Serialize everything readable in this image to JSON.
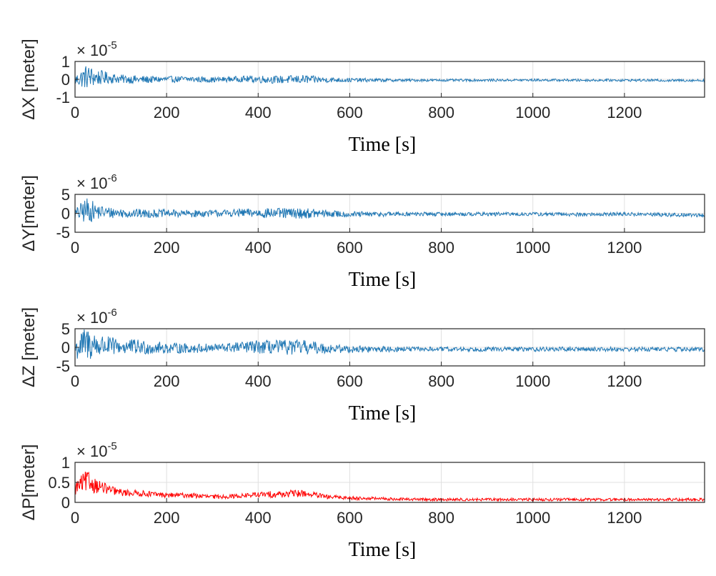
{
  "chart_data": [
    {
      "type": "line",
      "ylabel": "ΔX [meter]",
      "xlabel": "Time [s]",
      "exponent_base": "× 10",
      "exponent": "-5",
      "xlim": [
        0,
        1375
      ],
      "ylim": [
        -1,
        1
      ],
      "xticks": [
        0,
        200,
        400,
        600,
        800,
        1000,
        1200
      ],
      "yticks": [
        -1,
        0,
        1
      ],
      "ytick_labels": [
        "-1",
        "0",
        "1"
      ],
      "grid": true,
      "color": "#1f77b4",
      "series": [
        {
          "x": [
            0,
            25,
            50,
            75,
            100,
            150,
            200,
            250,
            300,
            350,
            400,
            450,
            500,
            550,
            600,
            700,
            800,
            900,
            1000,
            1100,
            1200,
            1300,
            1375
          ],
          "y": [
            -0.05,
            0.15,
            0.1,
            0.08,
            0.02,
            -0.02,
            0.0,
            0.01,
            -0.03,
            0.02,
            0.01,
            -0.02,
            0.0,
            -0.03,
            -0.04,
            -0.05,
            -0.05,
            -0.05,
            -0.04,
            -0.05,
            -0.05,
            -0.06,
            -0.06
          ],
          "amplitude": [
            0.3,
            0.7,
            0.45,
            0.3,
            0.25,
            0.22,
            0.18,
            0.18,
            0.15,
            0.15,
            0.22,
            0.22,
            0.25,
            0.15,
            0.12,
            0.08,
            0.07,
            0.07,
            0.07,
            0.07,
            0.07,
            0.07,
            0.07
          ]
        }
      ]
    },
    {
      "type": "line",
      "ylabel": "ΔY[meter]",
      "xlabel": "Time [s]",
      "exponent_base": "× 10",
      "exponent": "-6",
      "xlim": [
        0,
        1375
      ],
      "ylim": [
        -5,
        5
      ],
      "xticks": [
        0,
        200,
        400,
        600,
        800,
        1000,
        1200
      ],
      "yticks": [
        -5,
        0,
        5
      ],
      "ytick_labels": [
        "-5",
        "0",
        "5"
      ],
      "grid": true,
      "color": "#1f77b4",
      "series": [
        {
          "x": [
            0,
            25,
            50,
            75,
            100,
            150,
            200,
            250,
            300,
            350,
            400,
            450,
            500,
            550,
            600,
            700,
            800,
            900,
            1000,
            1100,
            1200,
            1300,
            1375
          ],
          "y": [
            -0.3,
            0.8,
            0.4,
            0.2,
            0.1,
            -0.1,
            0.0,
            -0.1,
            0.0,
            0.1,
            0.1,
            0.0,
            0.0,
            -0.1,
            -0.3,
            -0.2,
            -0.2,
            -0.2,
            -0.2,
            -0.3,
            -0.2,
            -0.4,
            -0.5
          ],
          "amplitude": [
            1.5,
            3.5,
            2.0,
            1.5,
            1.3,
            1.2,
            1.0,
            1.0,
            0.9,
            1.0,
            1.3,
            1.4,
            1.4,
            1.0,
            0.8,
            0.6,
            0.5,
            0.5,
            0.5,
            0.5,
            0.5,
            0.5,
            0.5
          ]
        }
      ]
    },
    {
      "type": "line",
      "ylabel": "ΔZ [meter]",
      "xlabel": "Time [s]",
      "exponent_base": "× 10",
      "exponent": "-6",
      "xlim": [
        0,
        1375
      ],
      "ylim": [
        -5,
        5
      ],
      "xticks": [
        0,
        200,
        400,
        600,
        800,
        1000,
        1200
      ],
      "yticks": [
        -5,
        0,
        5
      ],
      "ytick_labels": [
        "-5",
        "0",
        "5"
      ],
      "grid": true,
      "color": "#1f77b4",
      "series": [
        {
          "x": [
            0,
            25,
            50,
            75,
            100,
            150,
            200,
            250,
            300,
            350,
            400,
            450,
            500,
            550,
            600,
            700,
            800,
            900,
            1000,
            1100,
            1200,
            1300,
            1375
          ],
          "y": [
            -0.5,
            1.0,
            0.5,
            0.3,
            0.2,
            0.0,
            -0.2,
            -0.3,
            -0.2,
            0.0,
            0.1,
            0.0,
            0.0,
            -0.3,
            -0.5,
            -0.5,
            -0.5,
            -0.5,
            -0.5,
            -0.5,
            -0.5,
            -0.5,
            -0.6
          ],
          "amplitude": [
            3.0,
            4.8,
            3.5,
            2.5,
            2.2,
            2.0,
            1.5,
            1.3,
            1.2,
            1.4,
            1.8,
            2.0,
            2.0,
            1.3,
            1.0,
            0.7,
            0.6,
            0.6,
            0.6,
            0.6,
            0.6,
            0.6,
            0.6
          ]
        }
      ]
    },
    {
      "type": "line",
      "ylabel": "ΔP[meter]",
      "xlabel": "Time [s]",
      "exponent_base": "× 10",
      "exponent": "-5",
      "xlim": [
        0,
        1375
      ],
      "ylim": [
        0,
        1
      ],
      "xticks": [
        0,
        200,
        400,
        600,
        800,
        1000,
        1200
      ],
      "yticks": [
        0,
        0.5,
        1
      ],
      "ytick_labels": [
        "0",
        "0.5",
        "1"
      ],
      "grid": true,
      "color": "#ff0000",
      "series": [
        {
          "x": [
            0,
            25,
            50,
            75,
            100,
            150,
            200,
            250,
            300,
            350,
            400,
            450,
            500,
            550,
            600,
            700,
            800,
            900,
            1000,
            1100,
            1200,
            1300,
            1375
          ],
          "y": [
            0.3,
            0.45,
            0.35,
            0.28,
            0.22,
            0.2,
            0.16,
            0.16,
            0.12,
            0.14,
            0.17,
            0.18,
            0.2,
            0.12,
            0.1,
            0.07,
            0.06,
            0.06,
            0.06,
            0.06,
            0.06,
            0.06,
            0.06
          ],
          "amplitude": [
            0.2,
            0.3,
            0.2,
            0.12,
            0.1,
            0.08,
            0.07,
            0.07,
            0.06,
            0.06,
            0.08,
            0.1,
            0.1,
            0.06,
            0.05,
            0.04,
            0.04,
            0.04,
            0.04,
            0.04,
            0.04,
            0.04,
            0.04
          ]
        }
      ]
    }
  ]
}
